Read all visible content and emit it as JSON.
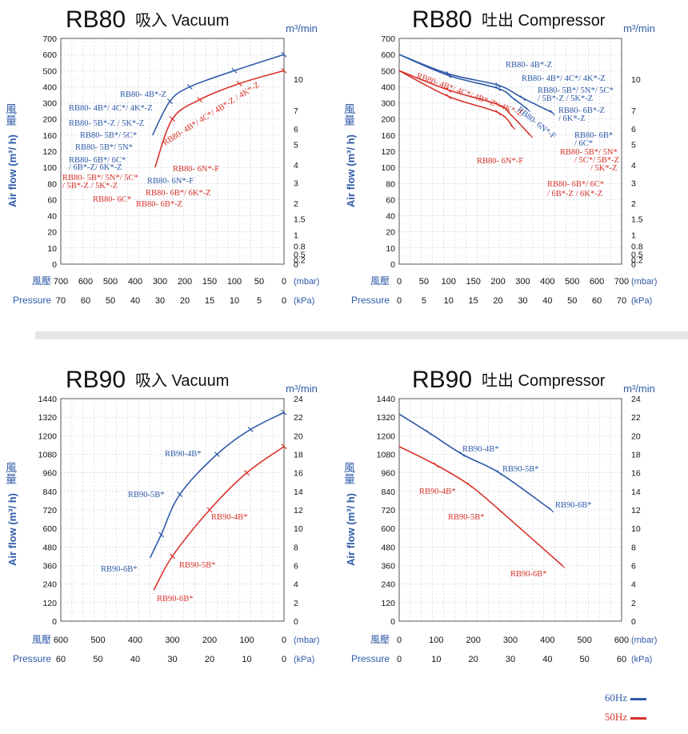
{
  "legend": [
    {
      "label": "60Hz",
      "color": "#2f5aa8"
    },
    {
      "label": "50Hz",
      "color": "#d8332b"
    }
  ],
  "chart_data": [
    {
      "type": "line",
      "title_model": "RB80",
      "title_mode": "吸入 Vacuum",
      "x_axis_mode": "reversed",
      "ylabel_cjk": "風量",
      "ylabel": "Air flow (m³/ h)",
      "y2label": "m³/min",
      "xlabel_cjk": "風壓",
      "xlabel_unit": "(mbar)",
      "x2label": "Pressure",
      "x2label_unit": "(kPa)",
      "x_ticks_mbar": [
        700,
        600,
        500,
        400,
        300,
        200,
        150,
        100,
        50,
        0
      ],
      "x_ticks_kpa": [
        70,
        60,
        50,
        40,
        30,
        20,
        15,
        10,
        5,
        0
      ],
      "y_scale": "nonlinear",
      "y_ticks": [
        0,
        10,
        20,
        40,
        60,
        80,
        100,
        120,
        160,
        200,
        300,
        400,
        500,
        600,
        700
      ],
      "y2_ticks": [
        0,
        0.2,
        0.5,
        0.8,
        1,
        1.5,
        2,
        3,
        4,
        5,
        6,
        7,
        10
      ],
      "xlim": [
        700,
        0
      ],
      "ylim": [
        0,
        700
      ],
      "series": [
        {
          "color": "#2f5aa8",
          "points": [
            [
              330,
              160
            ],
            [
              260,
              310
            ],
            [
              190,
              400
            ],
            [
              100,
              500
            ],
            [
              0,
              600
            ]
          ]
        },
        {
          "color": "#d8332b",
          "points": [
            [
              320,
              100
            ],
            [
              250,
              200
            ],
            [
              170,
              320
            ],
            [
              90,
              420
            ],
            [
              0,
              500
            ]
          ]
        }
      ],
      "annotations": [
        {
          "text": "RB80- 4B*-Z",
          "color": "#2f5aa8"
        },
        {
          "text": "RB80- 4B*/ 4C*/ 4K*-Z",
          "color": "#2f5aa8"
        },
        {
          "text": "RB80- 5B*-Z / 5K*-Z",
          "color": "#2f5aa8"
        },
        {
          "text": "RB80- 5B*/ 5C*",
          "color": "#2f5aa8"
        },
        {
          "text": "RB80- 5B*/ 5N*",
          "color": "#2f5aa8"
        },
        {
          "text": "RB80- 6B*/ 6C*",
          "color": "#2f5aa8"
        },
        {
          "text": "/ 6B*-Z/ 6K*-Z",
          "color": "#2f5aa8"
        },
        {
          "text": "RB80- 5B*/ 5N*/ 5C*",
          "color": "#d8332b"
        },
        {
          "text": "/ 5B*-Z / 5K*-Z",
          "color": "#d8332b"
        },
        {
          "text": "RB80- 6C*",
          "color": "#d8332b"
        },
        {
          "text": "RB80- 4B*/ 4C*/ 4B*-Z / 4K*-Z",
          "color": "#d8332b"
        },
        {
          "text": "RB80- 6N*-F",
          "color": "#d8332b"
        },
        {
          "text": "RB80- 6N*-F",
          "color": "#2f5aa8"
        },
        {
          "text": "RB80- 6B*/ 6K*-Z",
          "color": "#d8332b"
        },
        {
          "text": "RB80- 6B*-Z",
          "color": "#d8332b"
        }
      ]
    },
    {
      "type": "line",
      "title_model": "RB80",
      "title_mode": "吐出 Compressor",
      "x_axis_mode": "normal",
      "ylabel_cjk": "風量",
      "ylabel": "Air flow (m³/ h)",
      "y2label": "m³/min",
      "xlabel_cjk": "風壓",
      "xlabel_unit": "(mbar)",
      "x2label": "Pressure",
      "x2label_unit": "(kPa)",
      "x_ticks_mbar": [
        0,
        50,
        100,
        150,
        200,
        300,
        400,
        500,
        600,
        700
      ],
      "x_ticks_kpa": [
        0,
        5,
        10,
        15,
        20,
        30,
        40,
        50,
        60,
        70
      ],
      "y_scale": "nonlinear",
      "y_ticks": [
        0,
        10,
        20,
        40,
        60,
        80,
        100,
        120,
        160,
        200,
        300,
        400,
        500,
        600,
        700
      ],
      "y2_ticks": [
        0,
        0.2,
        0.5,
        0.8,
        1,
        1.5,
        2,
        3,
        4,
        5,
        6,
        7,
        10
      ],
      "xlim": [
        0,
        700
      ],
      "ylim": [
        0,
        700
      ],
      "series": [
        {
          "color": "#2f5aa8",
          "points": [
            [
              0,
              600
            ],
            [
              100,
              480
            ],
            [
              200,
              410
            ],
            [
              300,
              330
            ],
            [
              420,
              240
            ]
          ]
        },
        {
          "color": "#2f5aa8",
          "points": [
            [
              0,
              600
            ],
            [
              100,
              470
            ],
            [
              200,
              390
            ],
            [
              260,
              330
            ],
            [
              320,
              260
            ]
          ]
        },
        {
          "color": "#d8332b",
          "points": [
            [
              0,
              500
            ],
            [
              100,
              380
            ],
            [
              200,
              290
            ],
            [
              250,
              230
            ],
            [
              330,
              160
            ]
          ]
        },
        {
          "color": "#d8332b",
          "points": [
            [
              0,
              500
            ],
            [
              100,
              340
            ],
            [
              200,
              240
            ],
            [
              260,
              180
            ]
          ]
        }
      ],
      "annotations": [
        {
          "text": "RB80- 4B*-Z",
          "color": "#2f5aa8"
        },
        {
          "text": "RB80- 4B*/ 4C*/ 4K*-Z",
          "color": "#2f5aa8"
        },
        {
          "text": "RB80- 5B*/ 5N*/ 5C*",
          "color": "#2f5aa8"
        },
        {
          "text": "/ 5B*-Z / 5K*-Z",
          "color": "#2f5aa8"
        },
        {
          "text": "RB80- 6B*-Z",
          "color": "#2f5aa8"
        },
        {
          "text": "/ 6K*-Z",
          "color": "#2f5aa8"
        },
        {
          "text": "RB80- 6B*",
          "color": "#2f5aa8"
        },
        {
          "text": "/ 6C*",
          "color": "#2f5aa8"
        },
        {
          "text": "RB80- 6N*-F",
          "color": "#2f5aa8"
        },
        {
          "text": "RB80- 4B*/ 4C*/ 4B*-Z / 4K*-Z",
          "color": "#d8332b"
        },
        {
          "text": "RB80- 6N*-F",
          "color": "#d8332b"
        },
        {
          "text": "RB80- 5B*/ 5N*",
          "color": "#d8332b"
        },
        {
          "text": "/ 5C*/ 5B*-Z",
          "color": "#d8332b"
        },
        {
          "text": "/ 5K*-Z",
          "color": "#d8332b"
        },
        {
          "text": "RB80- 6B*/ 6C*",
          "color": "#d8332b"
        },
        {
          "text": "/ 6B*-Z / 6K*-Z",
          "color": "#d8332b"
        }
      ]
    },
    {
      "type": "line",
      "title_model": "RB90",
      "title_mode": "吸入 Vacuum",
      "x_axis_mode": "reversed",
      "ylabel_cjk": "風量",
      "ylabel": "Air flow (m³/ h)",
      "y2label": "m³/min",
      "xlabel_cjk": "風壓",
      "xlabel_unit": "(mbar)",
      "x2label": "Pressure",
      "x2label_unit": "(kPa)",
      "x_ticks_mbar": [
        600,
        500,
        400,
        300,
        200,
        100,
        0
      ],
      "x_ticks_kpa": [
        60,
        50,
        40,
        30,
        20,
        10,
        0
      ],
      "y_scale": "linear",
      "y_ticks": [
        0,
        120,
        240,
        360,
        480,
        600,
        720,
        840,
        960,
        1080,
        1200,
        1320,
        1440
      ],
      "y2_ticks": [
        0,
        2,
        4,
        6,
        8,
        10,
        12,
        14,
        16,
        18,
        20,
        22,
        24
      ],
      "xlim": [
        600,
        0
      ],
      "ylim": [
        0,
        1440
      ],
      "series": [
        {
          "color": "#2f5aa8",
          "points": [
            [
              360,
              410
            ],
            [
              330,
              560
            ],
            [
              280,
              820
            ],
            [
              180,
              1080
            ],
            [
              90,
              1240
            ],
            [
              0,
              1350
            ]
          ]
        },
        {
          "color": "#d8332b",
          "points": [
            [
              350,
              200
            ],
            [
              300,
              420
            ],
            [
              200,
              720
            ],
            [
              100,
              960
            ],
            [
              0,
              1130
            ]
          ]
        }
      ],
      "annotations": [
        {
          "text": "RB90-4B*",
          "color": "#2f5aa8"
        },
        {
          "text": "RB90-5B*",
          "color": "#2f5aa8"
        },
        {
          "text": "RB90-6B*",
          "color": "#2f5aa8"
        },
        {
          "text": "RB90-4B*",
          "color": "#d8332b"
        },
        {
          "text": "RB90-5B*",
          "color": "#d8332b"
        },
        {
          "text": "RB90-6B*",
          "color": "#d8332b"
        }
      ]
    },
    {
      "type": "line",
      "title_model": "RB90",
      "title_mode": "吐出 Compressor",
      "x_axis_mode": "normal",
      "ylabel_cjk": "風量",
      "ylabel": "Air flow (m³/ h)",
      "y2label": "m³/min",
      "xlabel_cjk": "風壓",
      "xlabel_unit": "(mbar)",
      "x2label": "Pressure",
      "x2label_unit": "(kPa)",
      "x_ticks_mbar": [
        0,
        100,
        200,
        300,
        400,
        500,
        600
      ],
      "x_ticks_kpa": [
        0,
        10,
        20,
        30,
        40,
        50,
        60
      ],
      "y_scale": "linear",
      "y_ticks": [
        0,
        120,
        240,
        360,
        480,
        600,
        720,
        840,
        960,
        1080,
        1200,
        1320,
        1440
      ],
      "y2_ticks": [
        0,
        2,
        4,
        6,
        8,
        10,
        12,
        14,
        16,
        18,
        20,
        22,
        24
      ],
      "xlim": [
        0,
        600
      ],
      "ylim": [
        0,
        1440
      ],
      "series": [
        {
          "color": "#2f5aa8",
          "points": [
            [
              0,
              1340
            ],
            [
              80,
              1220
            ],
            [
              170,
              1080
            ],
            [
              270,
              960
            ],
            [
              410,
              720
            ]
          ]
        },
        {
          "color": "#d8332b",
          "points": [
            [
              0,
              1130
            ],
            [
              100,
              1010
            ],
            [
              190,
              880
            ],
            [
              270,
              720
            ],
            [
              440,
              360
            ]
          ]
        }
      ],
      "annotations": [
        {
          "text": "RB90-4B*",
          "color": "#2f5aa8"
        },
        {
          "text": "RB90-5B*",
          "color": "#2f5aa8"
        },
        {
          "text": "RB90-6B*",
          "color": "#2f5aa8"
        },
        {
          "text": "RB90-4B*",
          "color": "#d8332b"
        },
        {
          "text": "RB90-5B*",
          "color": "#d8332b"
        },
        {
          "text": "RB90-6B*",
          "color": "#d8332b"
        }
      ]
    }
  ]
}
